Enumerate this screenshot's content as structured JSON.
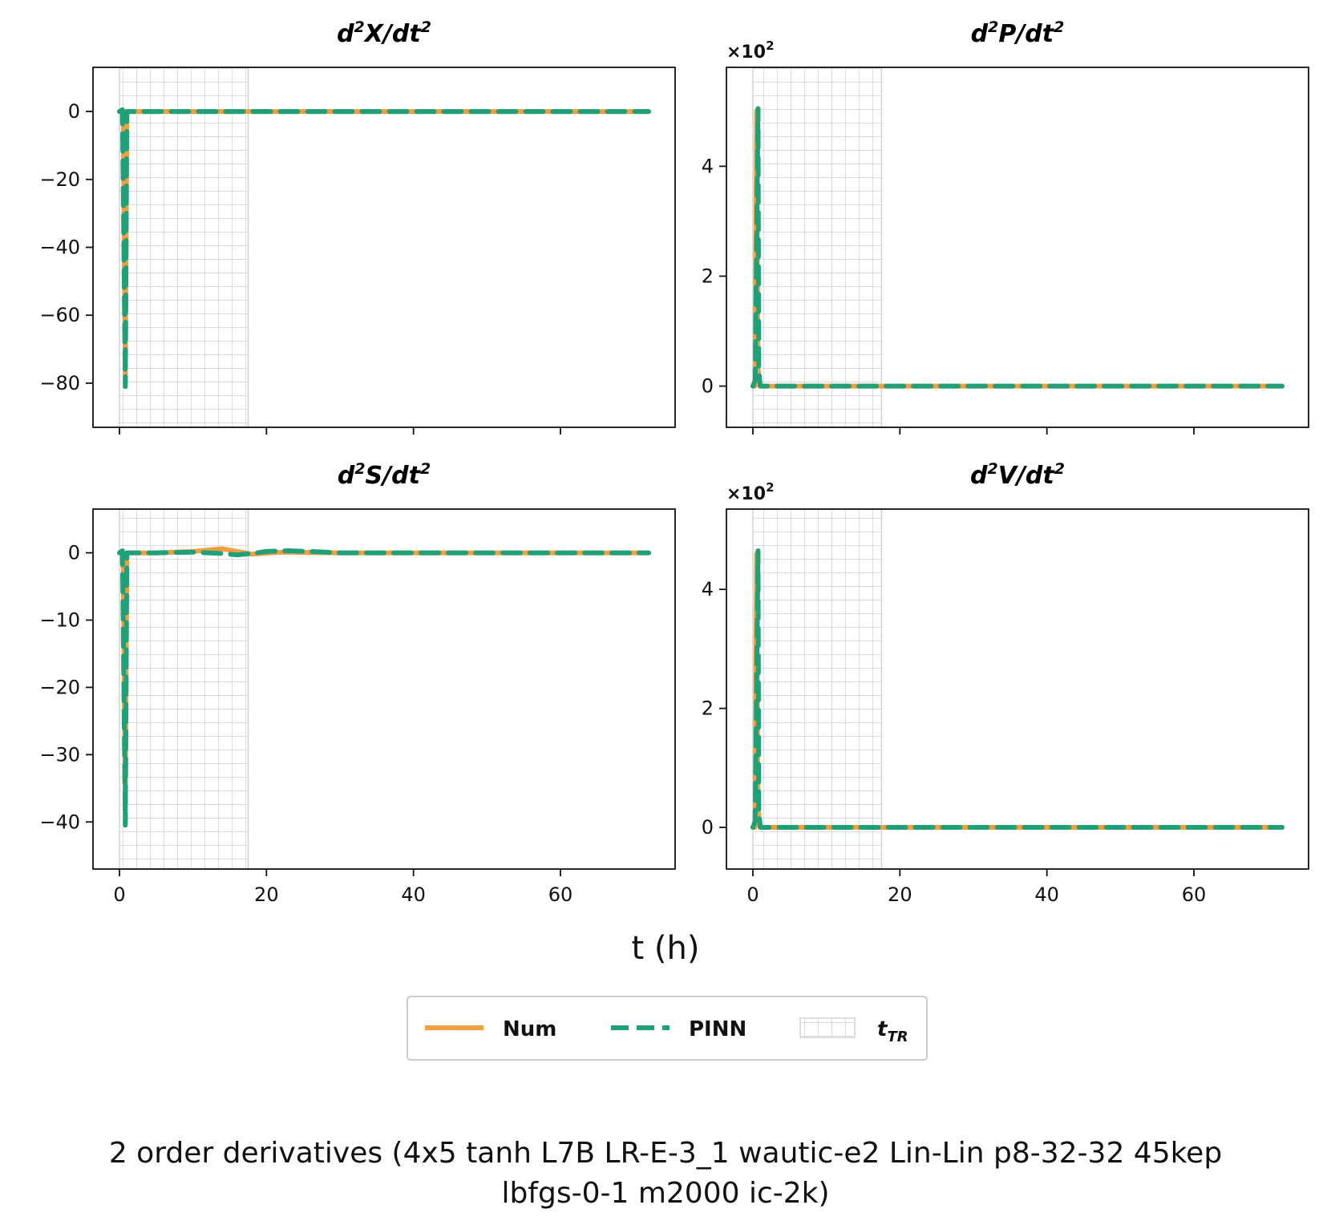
{
  "figure": {
    "xlabel": "t (h)",
    "suptitle_line1": "2 order derivatives (4x5 tanh L7B LR-E-3_1 wautic-e2 Lin-Lin p8-32-32 45kep",
    "suptitle_line2": "lbfgs-0-1 m2000 ic-2k)"
  },
  "legend": {
    "num_label": "Num",
    "pinn_label": "PINN",
    "ttr_label": "t",
    "ttr_sub": "TR"
  },
  "colors": {
    "num": "#f0a040",
    "pinn": "#20a078",
    "shade": "#d3d3d3"
  },
  "chart_data": [
    {
      "type": "line",
      "title_var": "X",
      "title_prefix": "d",
      "title_sup": "2",
      "title_mid": "/dt",
      "title_end": "2",
      "multiplier_base": "",
      "multiplier_exp": "",
      "xlim": [
        -3.6,
        75.6
      ],
      "ylim": [
        -93,
        13
      ],
      "xticks": [
        0,
        20,
        40,
        60
      ],
      "show_xticklabels": false,
      "yticks": [
        0,
        -20,
        -40,
        -60,
        -80
      ],
      "ytick_labels": [
        "0",
        "−20",
        "−40",
        "−60",
        "−80"
      ],
      "shade_range": [
        0,
        17.5
      ],
      "series": [
        {
          "name": "Num",
          "x": [
            0,
            0.5,
            0.8,
            1,
            2,
            10,
            20,
            40,
            60,
            72
          ],
          "y": [
            0,
            0,
            -80,
            0,
            0,
            0,
            0,
            0,
            0,
            0
          ]
        },
        {
          "name": "PINN",
          "x": [
            0,
            0.4,
            0.6,
            0.8,
            1,
            2,
            10,
            20,
            40,
            60,
            72
          ],
          "y": [
            0,
            0.5,
            -40,
            -81,
            0,
            0,
            0,
            0,
            0,
            0,
            0
          ]
        }
      ]
    },
    {
      "type": "line",
      "title_var": "P",
      "title_prefix": "d",
      "title_sup": "2",
      "title_mid": "/dt",
      "title_end": "2",
      "multiplier_base": "×10",
      "multiplier_exp": "2",
      "xlim": [
        -3.6,
        75.6
      ],
      "ylim": [
        -0.75,
        5.8
      ],
      "xticks": [
        0,
        20,
        40,
        60
      ],
      "show_xticklabels": false,
      "yticks": [
        0,
        2,
        4
      ],
      "ytick_labels": [
        "0",
        "2",
        "4"
      ],
      "shade_range": [
        0,
        17.5
      ],
      "series": [
        {
          "name": "Num",
          "x": [
            0,
            0.3,
            0.5,
            0.7,
            1,
            2,
            20,
            40,
            60,
            72
          ],
          "y": [
            0,
            0,
            5,
            0.3,
            0,
            0,
            0,
            0,
            0,
            0
          ]
        },
        {
          "name": "PINN",
          "x": [
            0,
            0.3,
            0.5,
            0.7,
            0.8,
            1,
            2,
            20,
            40,
            60,
            72
          ],
          "y": [
            0,
            0.1,
            2.5,
            5.05,
            0.3,
            0,
            0,
            0,
            0,
            0,
            0
          ]
        }
      ]
    },
    {
      "type": "line",
      "title_var": "S",
      "title_prefix": "d",
      "title_sup": "2",
      "title_mid": "/dt",
      "title_end": "2",
      "multiplier_base": "",
      "multiplier_exp": "",
      "xlim": [
        -3.6,
        75.6
      ],
      "ylim": [
        -47,
        6.5
      ],
      "xticks": [
        0,
        20,
        40,
        60
      ],
      "show_xticklabels": true,
      "yticks": [
        0,
        -10,
        -20,
        -30,
        -40
      ],
      "ytick_labels": [
        "0",
        "−10",
        "−20",
        "−30",
        "−40"
      ],
      "shade_range": [
        0,
        17.5
      ],
      "series": [
        {
          "name": "Num",
          "x": [
            0,
            0.5,
            0.8,
            1,
            5,
            10,
            14,
            18,
            22,
            30,
            40,
            60,
            72
          ],
          "y": [
            0,
            0,
            -40,
            0,
            0,
            0.2,
            0.6,
            -0.2,
            0.1,
            0,
            0,
            0,
            0
          ]
        },
        {
          "name": "PINN",
          "x": [
            0,
            0.4,
            0.6,
            0.8,
            1,
            5,
            10,
            14,
            16,
            18,
            20,
            23,
            26,
            30,
            40,
            60,
            72
          ],
          "y": [
            0,
            0.3,
            -20,
            -40.5,
            0,
            0,
            0.1,
            -0.1,
            -0.3,
            -0.1,
            0.2,
            0.3,
            0.2,
            0,
            0,
            0,
            0
          ]
        }
      ]
    },
    {
      "type": "line",
      "title_var": "V",
      "title_prefix": "d",
      "title_sup": "2",
      "title_mid": "/dt",
      "title_end": "2",
      "multiplier_base": "×10",
      "multiplier_exp": "2",
      "xlim": [
        -3.6,
        75.6
      ],
      "ylim": [
        -0.7,
        5.35
      ],
      "xticks": [
        0,
        20,
        40,
        60
      ],
      "show_xticklabels": true,
      "xtick_labels": [
        "0",
        "20",
        "40",
        "60"
      ],
      "yticks": [
        0,
        2,
        4
      ],
      "ytick_labels": [
        "0",
        "2",
        "4"
      ],
      "shade_range": [
        0,
        17.5
      ],
      "series": [
        {
          "name": "Num",
          "x": [
            0,
            0.3,
            0.5,
            0.7,
            1,
            2,
            20,
            40,
            60,
            72
          ],
          "y": [
            0,
            0,
            4.6,
            0.3,
            0,
            0,
            0,
            0,
            0,
            0
          ]
        },
        {
          "name": "PINN",
          "x": [
            0,
            0.3,
            0.5,
            0.7,
            0.8,
            1,
            2,
            20,
            40,
            60,
            72
          ],
          "y": [
            0,
            0.1,
            2.3,
            4.65,
            0.3,
            0,
            0,
            0,
            0,
            0,
            0
          ]
        }
      ]
    }
  ]
}
